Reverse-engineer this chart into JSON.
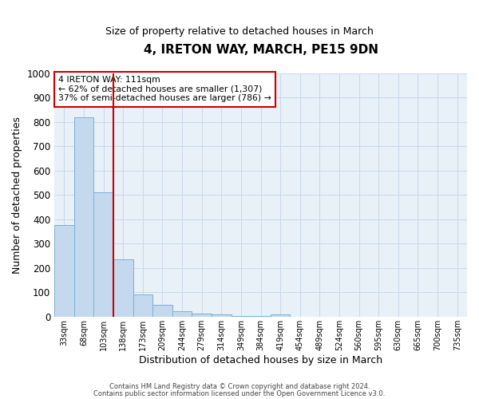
{
  "title": "4, IRETON WAY, MARCH, PE15 9DN",
  "subtitle": "Size of property relative to detached houses in March",
  "xlabel": "Distribution of detached houses by size in March",
  "ylabel": "Number of detached properties",
  "bar_labels": [
    "33sqm",
    "68sqm",
    "103sqm",
    "138sqm",
    "173sqm",
    "209sqm",
    "244sqm",
    "279sqm",
    "314sqm",
    "349sqm",
    "384sqm",
    "419sqm",
    "454sqm",
    "489sqm",
    "524sqm",
    "560sqm",
    "595sqm",
    "630sqm",
    "665sqm",
    "700sqm",
    "735sqm"
  ],
  "bar_values": [
    375,
    820,
    510,
    235,
    90,
    50,
    22,
    14,
    8,
    4,
    2,
    8,
    0,
    0,
    0,
    0,
    0,
    0,
    0,
    0,
    0
  ],
  "bar_color": "#c5d9ee",
  "bar_edge_color": "#7aafd4",
  "grid_color": "#c8d8ea",
  "bg_color": "#e8f0f8",
  "vline_color": "#cc0000",
  "vline_pos": 2.5,
  "annotation_text": "4 IRETON WAY: 111sqm\n← 62% of detached houses are smaller (1,307)\n37% of semi-detached houses are larger (786) →",
  "annotation_box_edgecolor": "#cc0000",
  "footer_line1": "Contains HM Land Registry data © Crown copyright and database right 2024.",
  "footer_line2": "Contains public sector information licensed under the Open Government Licence v3.0.",
  "ylim": [
    0,
    1000
  ],
  "yticks": [
    0,
    100,
    200,
    300,
    400,
    500,
    600,
    700,
    800,
    900,
    1000
  ]
}
